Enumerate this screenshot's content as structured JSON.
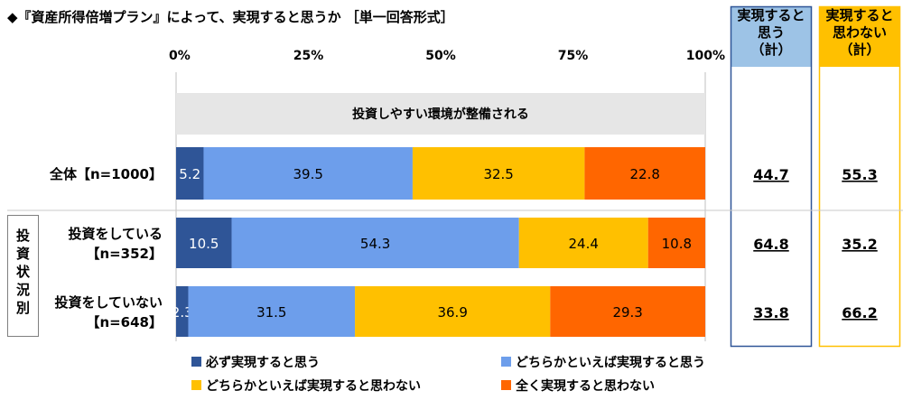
{
  "title": "◆『資産所得倍増プラン』によって、実現すると思うか ［単一回答形式］",
  "colors": {
    "s1": "#2F5597",
    "s2": "#6D9EEB",
    "s3": "#FFC000",
    "s4": "#FF6600",
    "band": "#E6E6E6",
    "box1_head": "#9DC3E6",
    "box1_border": "#2F5597",
    "box2_head": "#FFC000",
    "box2_border": "#FFC000"
  },
  "chart_data": {
    "type": "bar",
    "orientation": "horizontal",
    "stacked": true,
    "xlim": [
      0,
      100
    ],
    "x_ticks": [
      "0%",
      "25%",
      "50%",
      "75%",
      "100%"
    ],
    "section_label": "投資しやすい環境が整備される",
    "group_label": "投資状況別",
    "categories": [
      "全体【n=1000】",
      "投資をしている【n=352】",
      "投資をしていない【n=648】"
    ],
    "category_lines": [
      [
        "全体【n=1000】"
      ],
      [
        "投資をしている",
        "【n=352】"
      ],
      [
        "投資をしていない",
        "【n=648】"
      ]
    ],
    "series": [
      {
        "name": "必ず実現すると思う",
        "values": [
          5.2,
          10.5,
          2.3
        ]
      },
      {
        "name": "どちらかといえば実現すると思う",
        "values": [
          39.5,
          54.3,
          31.5
        ]
      },
      {
        "name": "どちらかといえば実現すると思わない",
        "values": [
          32.5,
          24.4,
          36.9
        ]
      },
      {
        "name": "全く実現すると思わない",
        "values": [
          22.8,
          10.8,
          29.3
        ]
      }
    ],
    "summary_columns": [
      {
        "header": [
          "実現すると",
          "思う",
          "（計）"
        ],
        "values": [
          "44.7",
          "64.8",
          "33.8"
        ]
      },
      {
        "header": [
          "実現すると",
          "思わない",
          "（計）"
        ],
        "values": [
          "55.3",
          "35.2",
          "66.2"
        ]
      }
    ],
    "legend_position": "bottom"
  }
}
